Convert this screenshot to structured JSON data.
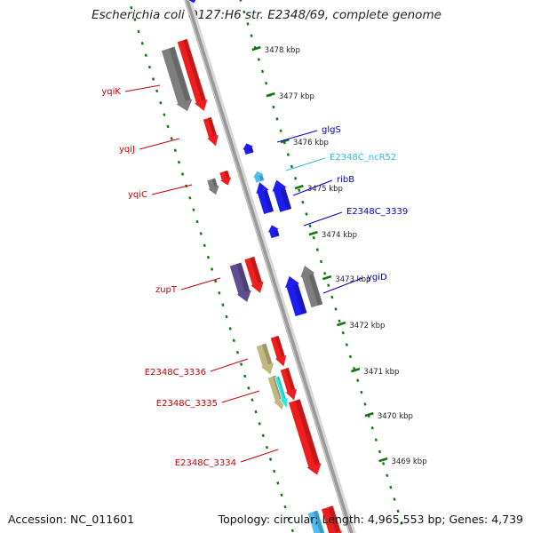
{
  "title": "Escherichia coli O127:H6 str. E2348/69, complete genome",
  "footer": {
    "accession": "Accession: NC_011601",
    "topology": "Topology: circular; Length: 4,965,553 bp; Genes: 4,739"
  },
  "colors": {
    "plus_strand_label": "#cc0000",
    "minus_strand_label": "#0000cc",
    "ncrna_label": "#33bbdd",
    "tick": "#117711",
    "backbone": "#999999",
    "gene_red": "#ee1111",
    "gene_blue": "#1111ee",
    "gene_gray": "#777777",
    "gene_purple": "#55448a",
    "gene_khaki": "#bdb37a",
    "gene_cyan": "#22e8e8",
    "gene_light_blue": "#44bbee",
    "gene_olive": "#8aa83a"
  },
  "scale_labels": [
    "3478 kbp",
    "3477 kbp",
    "3476 kbp",
    "3475 kbp",
    "3474 kbp",
    "3473 kbp",
    "3472 kbp",
    "3471 kbp",
    "3470 kbp",
    "3469 kbp"
  ],
  "genes_left": [
    "yqiK",
    "yqiJ",
    "yqiC",
    "zupT",
    "E2348C_3336",
    "E2348C_3335",
    "E2348C_3334"
  ],
  "genes_right": [
    "glgS",
    "E2348C_ncR52",
    "ribB",
    "E2348C_3339",
    "ygiD"
  ]
}
